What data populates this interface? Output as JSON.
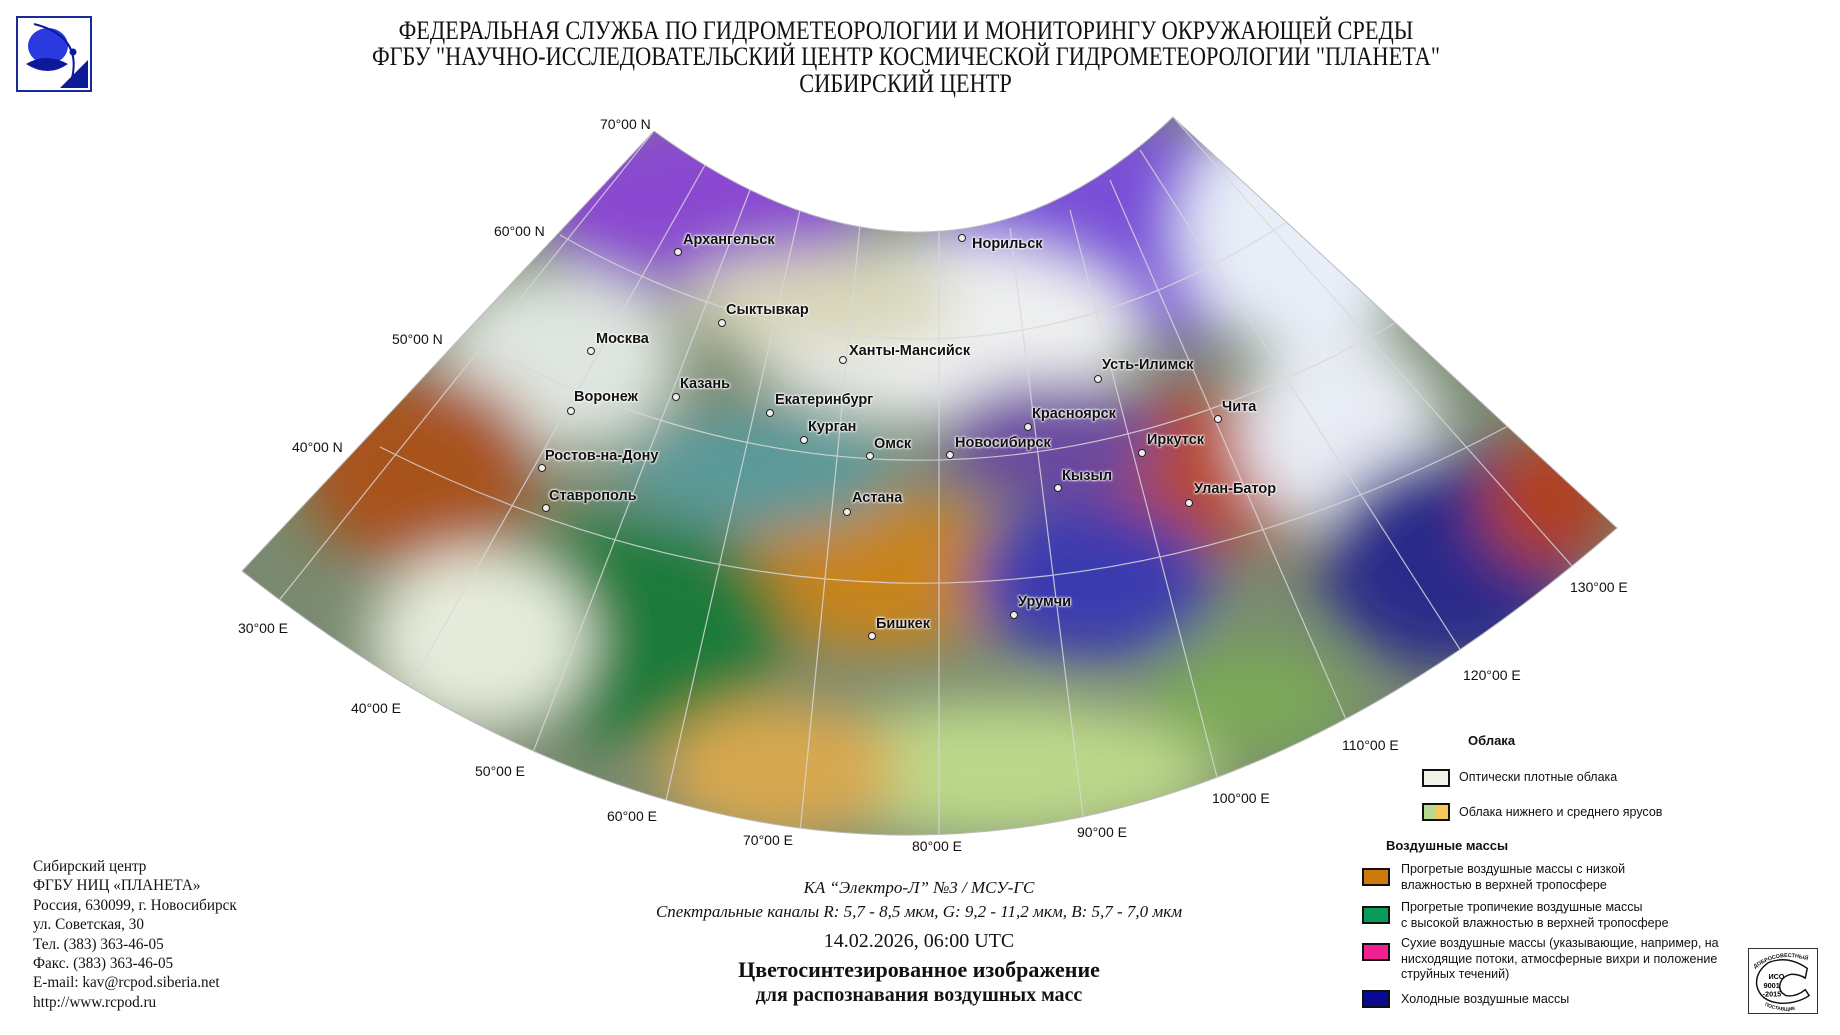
{
  "header": {
    "lines": [
      "ФЕДЕРАЛЬНАЯ СЛУЖБА ПО ГИДРОМЕТЕОРОЛОГИИ И МОНИТОРИНГУ ОКРУЖАЮЩЕЙ СРЕДЫ",
      "ФГБУ \"НАУЧНО-ИССЛЕДОВАТЕЛЬСКИЙ ЦЕНТР КОСМИЧЕСКОЙ ГИДРОМЕТЕОРОЛОГИИ \"ПЛАНЕТА\"",
      "СИБИРСКИЙ ЦЕНТР"
    ]
  },
  "map": {
    "latitudes": [
      "70°00 N",
      "60°00 N",
      "50°00 N",
      "40°00 N"
    ],
    "longitudes": [
      "30°00 E",
      "40°00 E",
      "50°00 E",
      "60°00 E",
      "70°00 E",
      "80°00 E",
      "90°00 E",
      "100°00 E",
      "110°00 E",
      "120°00 E",
      "130°00 E"
    ],
    "cities": [
      "Архангельск",
      "Норильск",
      "Сыктывкар",
      "Москва",
      "Ханты-Мансийск",
      "Усть-Илимск",
      "Казань",
      "Екатеринбург",
      "Воронеж",
      "Курган",
      "Омск",
      "Новосибирск",
      "Красноярск",
      "Иркутск",
      "Чита",
      "Ростов-на-Дону",
      "Кызыл",
      "Улан-Батор",
      "Ставрополь",
      "Астана",
      "Урумчи",
      "Бишкек"
    ]
  },
  "legend": {
    "clouds_title": "Облака",
    "clouds": [
      {
        "label": "Оптически плотные облака",
        "colors": [
          "#f2f2e6"
        ]
      },
      {
        "label": "Облака нижнего и среднего ярусов",
        "colors": [
          "#b5dc92",
          "#f8c85a"
        ]
      }
    ],
    "air_title": "Воздушные массы",
    "air": [
      {
        "lines": [
          "Прогретые воздушные массы с низкой",
          "влажностью в верхней тропосфере"
        ],
        "color": "#cc7a0a"
      },
      {
        "lines": [
          "Прогретые тропичекие воздушные массы",
          "с высокой влажностью в верхней тропосфере"
        ],
        "color": "#0a9a5a"
      },
      {
        "lines": [
          "Сухие воздушные массы (указывающие, например, на",
          "нисходящие потоки, атмосферные вихри и положение",
          "струйных течений)"
        ],
        "color": "#f0208f"
      },
      {
        "lines": [
          "Холодные воздушные массы"
        ],
        "color": "#0a0a90"
      }
    ],
    "iso": [
      "ДОБРОСОВЕСТНЫЙ",
      "ИСО",
      "9001",
      "-2015",
      "ПОСТАВЩИК"
    ]
  },
  "address": [
    "Сибирский центр",
    "ФГБУ НИЦ «ПЛАНЕТА»",
    "Россия, 630099, г. Новосибирск",
    "ул. Советская, 30",
    "Тел. (383) 363-46-05",
    "Факс. (383) 363-46-05",
    "E-mail: kav@rcpod.siberia.net",
    "http://www.rcpod.ru"
  ],
  "caption": {
    "satellite": "КА “Электро-Л” №3 / МСУ-ГС",
    "channels": "Спектральные каналы R: 5,7 - 8,5 мкм, G: 9,2 - 11,2 мкм, B: 5,7 - 7,0 мкм",
    "datetime": "14.02.2026, 06:00 UTC",
    "title1": "Цветосинтезированное изображение",
    "title2": "для распознавания воздушных масс"
  }
}
